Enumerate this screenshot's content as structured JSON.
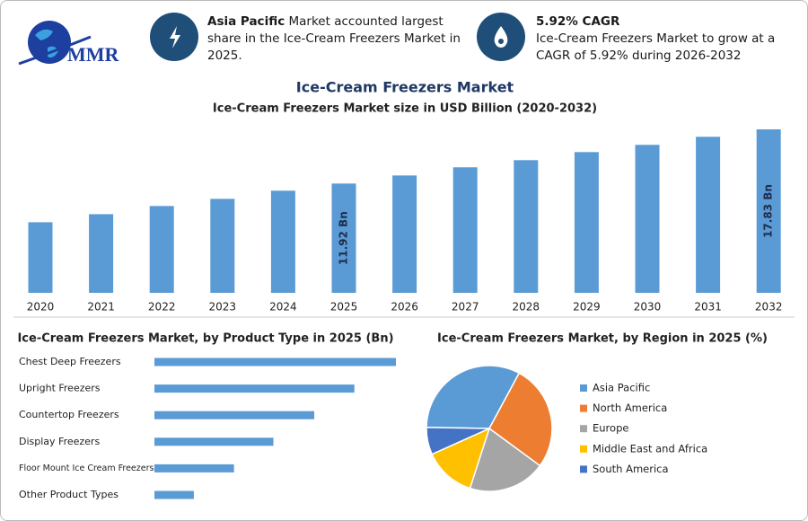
{
  "header": {
    "logo": "MMR",
    "cards": [
      {
        "highlight": "Asia Pacific",
        "text": "Market accounted largest share in the Ice-Cream Freezers Market in 2025."
      },
      {
        "highlight": "5.92% CAGR",
        "text": "Ice-Cream Freezers Market to grow at a CAGR of 5.92% during 2026-2032"
      }
    ]
  },
  "chart_data": [
    {
      "type": "bar",
      "title": "Ice-Cream Freezers Market",
      "subtitle": "Ice-Cream Freezers Market size in USD Billion (2020-2032)",
      "categories": [
        "2020",
        "2021",
        "2022",
        "2023",
        "2024",
        "2025",
        "2026",
        "2027",
        "2028",
        "2029",
        "2030",
        "2031",
        "2032"
      ],
      "values": [
        7.7,
        8.58,
        9.47,
        10.25,
        11.14,
        11.92,
        12.8,
        13.69,
        14.47,
        15.35,
        16.14,
        17.02,
        17.83
      ],
      "value_labels": [
        null,
        null,
        null,
        null,
        null,
        "11.92 Bn",
        null,
        null,
        null,
        null,
        null,
        null,
        "17.83 Bn"
      ],
      "color": "#5b9bd5"
    },
    {
      "type": "barh",
      "title": "Ice-Cream Freezers Market, by Product Type in 2025 (Bn)",
      "categories": [
        "Chest Deep Freezers",
        "Upright Freezers",
        "Countertop Freezers",
        "Display Freezers",
        "Floor Mount Ice Cream Freezers",
        "Other Product Types"
      ],
      "values": [
        3.43,
        2.84,
        2.27,
        1.69,
        1.13,
        0.56
      ],
      "color": "#5b9bd5"
    },
    {
      "type": "pie",
      "title": "Ice-Cream Freezers Market, by Region in 2025 (%)",
      "categories": [
        "Asia Pacific",
        "North America",
        "Europe",
        "Middle East and Africa",
        "South America"
      ],
      "values": [
        32.6,
        27.2,
        19.9,
        13.3,
        7.0
      ],
      "colors": [
        "#5b9bd5",
        "#ed7d31",
        "#a5a5a5",
        "#ffc000",
        "#4472c4"
      ],
      "legend": "right"
    }
  ]
}
